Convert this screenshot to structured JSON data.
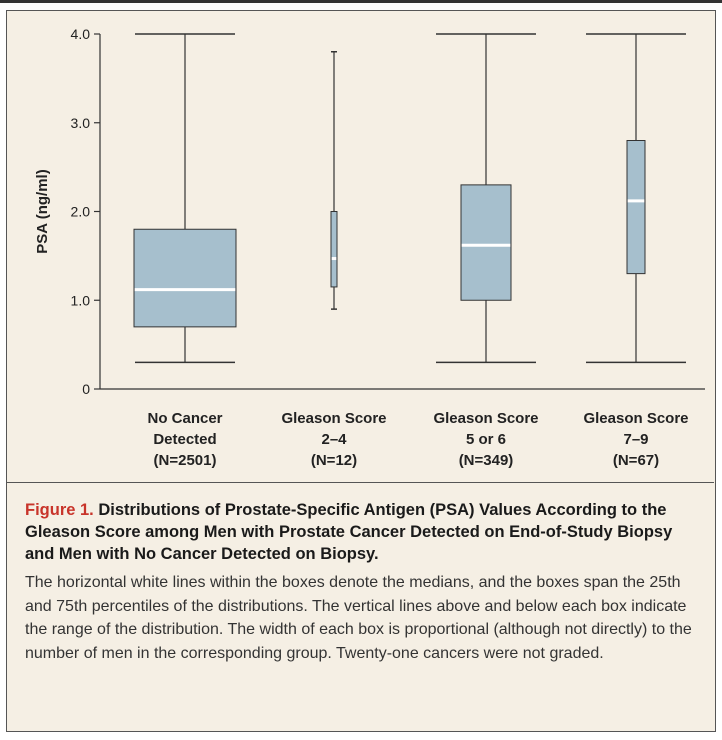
{
  "chart_data": {
    "type": "box",
    "ylabel": "PSA (ng/ml)",
    "ylim": [
      0,
      4.0
    ],
    "yticks": [
      {
        "value": 0,
        "label": "0"
      },
      {
        "value": 1.0,
        "label": "1.0"
      },
      {
        "value": 2.0,
        "label": "2.0"
      },
      {
        "value": 3.0,
        "label": "3.0"
      },
      {
        "value": 4.0,
        "label": "4.0"
      }
    ],
    "groups": [
      {
        "label": [
          "No Cancer",
          "Detected",
          "(N=2501)"
        ],
        "n": 2501,
        "min": 0.3,
        "q1": 0.7,
        "median": 1.12,
        "q3": 1.8,
        "max": 4.0
      },
      {
        "label": [
          "Gleason Score",
          "2–4",
          "(N=12)"
        ],
        "n": 12,
        "min": 0.9,
        "q1": 1.15,
        "median": 1.47,
        "q3": 2.0,
        "max": 3.8
      },
      {
        "label": [
          "Gleason Score",
          "5 or 6",
          "(N=349)"
        ],
        "n": 349,
        "min": 0.3,
        "q1": 1.0,
        "median": 1.62,
        "q3": 2.3,
        "max": 4.0
      },
      {
        "label": [
          "Gleason Score",
          "7–9",
          "(N=67)"
        ],
        "n": 67,
        "min": 0.3,
        "q1": 1.3,
        "median": 2.12,
        "q3": 2.8,
        "max": 4.0
      }
    ],
    "grid": false,
    "legend": "none"
  },
  "colors": {
    "box_fill": "#a6bfcd",
    "box_stroke": "#333333",
    "median": "#ffffff",
    "panel": "#f5efe4",
    "figure_label": "#c8342a"
  },
  "caption": {
    "figure_label": "Figure 1.",
    "title": "Distributions of Prostate-Specific Antigen (PSA) Values According to the Gleason Score among Men with Prostate Cancer Detected on End-of-Study Biopsy and Men with No Cancer Detected on Biopsy.",
    "body": "The horizontal white lines within the boxes denote the medians, and the boxes span the 25th and 75th percentiles of the distributions. The vertical lines above and below each box indicate the range of the distribution. The width of each box is proportional (although not directly) to the number of men in the corresponding group. Twenty-one cancers were not graded."
  }
}
